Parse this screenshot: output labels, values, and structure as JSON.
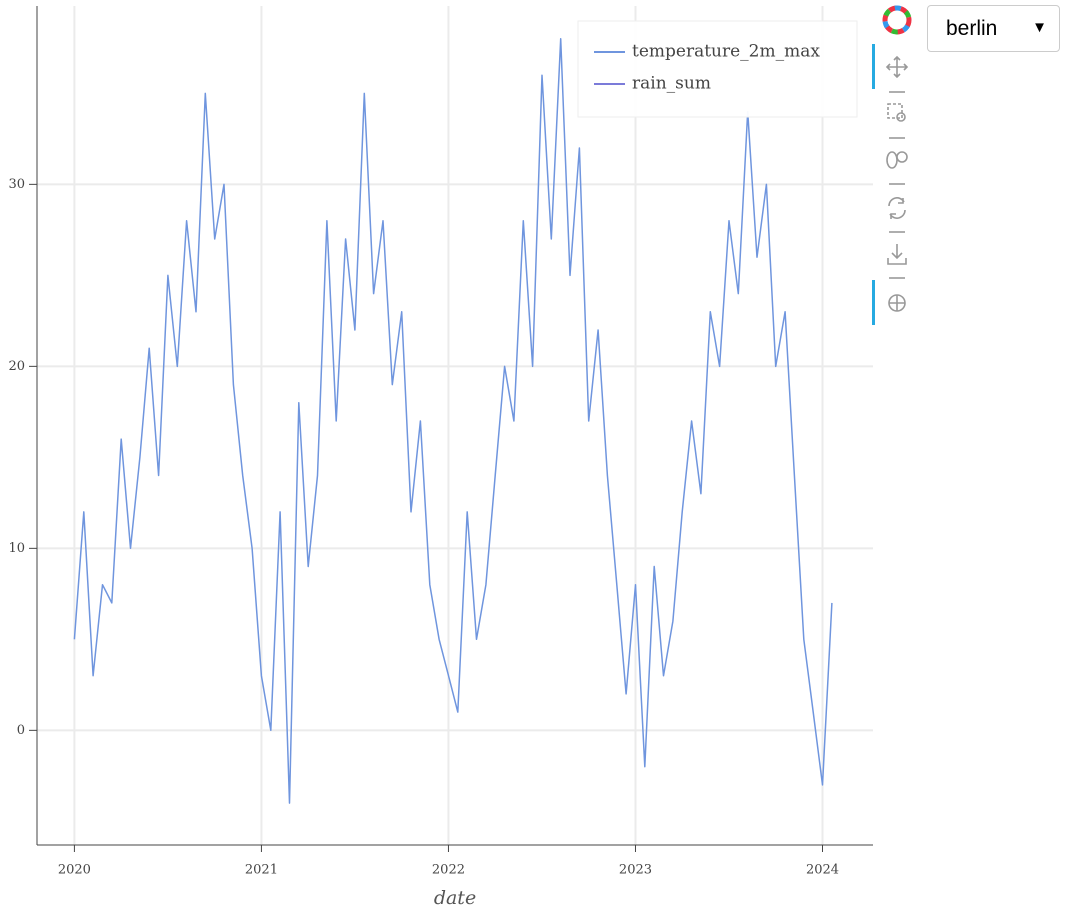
{
  "chart_data": {
    "type": "line",
    "xlabel": "date",
    "x": [
      2020.0,
      2020.05,
      2020.1,
      2020.15,
      2020.2,
      2020.25,
      2020.3,
      2020.35,
      2020.4,
      2020.45,
      2020.5,
      2020.55,
      2020.6,
      2020.65,
      2020.7,
      2020.75,
      2020.8,
      2020.85,
      2020.9,
      2020.95,
      2021.0,
      2021.05,
      2021.1,
      2021.15,
      2021.2,
      2021.25,
      2021.3,
      2021.35,
      2021.4,
      2021.45,
      2021.5,
      2021.55,
      2021.6,
      2021.65,
      2021.7,
      2021.75,
      2021.8,
      2021.85,
      2021.9,
      2021.95,
      2022.0,
      2022.05,
      2022.1,
      2022.15,
      2022.2,
      2022.25,
      2022.3,
      2022.35,
      2022.4,
      2022.45,
      2022.5,
      2022.55,
      2022.6,
      2022.65,
      2022.7,
      2022.75,
      2022.8,
      2022.85,
      2022.9,
      2022.95,
      2023.0,
      2023.05,
      2023.1,
      2023.15,
      2023.2,
      2023.25,
      2023.3,
      2023.35,
      2023.4,
      2023.45,
      2023.5,
      2023.55,
      2023.6,
      2023.65,
      2023.7,
      2023.75,
      2023.8,
      2023.85,
      2023.9,
      2023.95,
      2024.0,
      2024.05
    ],
    "series": [
      {
        "name": "temperature_2m_max",
        "color": "#6f95de",
        "values": [
          5,
          12,
          3,
          8,
          7,
          16,
          10,
          15,
          21,
          14,
          25,
          20,
          28,
          23,
          35,
          27,
          30,
          19,
          14,
          10,
          3,
          0,
          12,
          -4,
          18,
          9,
          14,
          28,
          17,
          27,
          22,
          35,
          24,
          28,
          19,
          23,
          12,
          17,
          8,
          5,
          3,
          1,
          12,
          5,
          8,
          14,
          20,
          17,
          28,
          20,
          36,
          27,
          38,
          25,
          32,
          17,
          22,
          14,
          8,
          2,
          8,
          -2,
          9,
          3,
          6,
          12,
          17,
          13,
          23,
          20,
          28,
          24,
          34,
          26,
          30,
          20,
          23,
          14,
          5,
          1,
          -3,
          7
        ]
      },
      {
        "name": "rain_sum",
        "color": "#7b7bd9",
        "values": [
          null,
          null,
          null,
          null,
          null,
          null,
          null,
          null,
          null,
          null,
          null,
          null,
          null,
          null,
          null,
          null,
          null,
          null,
          null,
          null,
          null,
          null,
          null,
          null,
          null,
          null,
          null,
          null,
          null,
          null,
          null,
          null,
          null,
          null,
          null,
          null,
          null,
          null,
          null,
          null,
          null,
          null,
          null,
          null,
          null,
          null,
          null,
          null,
          null,
          null,
          null,
          null,
          null,
          null,
          null,
          null,
          null,
          null,
          null,
          null,
          null,
          null,
          null,
          null,
          null,
          null,
          null,
          null,
          null,
          null,
          null,
          null,
          null,
          null,
          null,
          null,
          null,
          null,
          null,
          null,
          null,
          null
        ]
      }
    ],
    "xlim": [
      2019.8,
      2024.27
    ],
    "xticks": [
      2020,
      2021,
      2022,
      2023,
      2024
    ],
    "ylim": [
      -6.3,
      39.8
    ],
    "yticks": [
      0,
      10,
      20,
      30
    ],
    "grid": true,
    "legend": "top-right"
  },
  "dropdown": {
    "value": "berlin"
  }
}
